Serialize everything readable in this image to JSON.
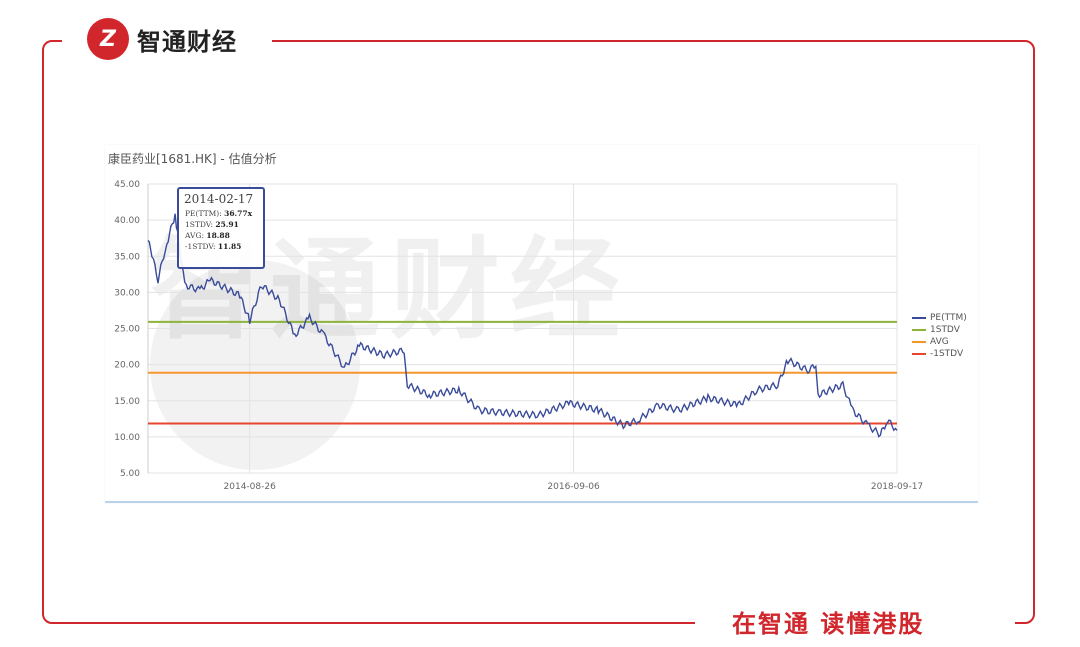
{
  "brand": {
    "logo_text": "智通财经",
    "logo_mark": "Z",
    "slogan": "在智通 读懂港股",
    "accent": "#d0262c"
  },
  "chart_data": {
    "type": "line",
    "title": "康臣药业[1681.HK] - 估值分析",
    "ylim": [
      5,
      45
    ],
    "yticks": [
      "45.00",
      "40.00",
      "35.00",
      "30.00",
      "25.00",
      "20.00",
      "15.00",
      "10.00",
      "5.00"
    ],
    "xlim": [
      "2014-01-05",
      "2018-09-17"
    ],
    "xticks": [
      "2014-08-26",
      "2016-09-06",
      "2018-09-17"
    ],
    "grid": true,
    "legend_position": "right",
    "series": [
      {
        "name": "PE(TTM)",
        "color": "#3a4b9a",
        "points": [
          [
            "2014-01-05",
            37.2
          ],
          [
            "2014-01-14",
            35.2
          ],
          [
            "2014-01-28",
            31.7
          ],
          [
            "2014-02-13",
            35.9
          ],
          [
            "2014-02-17",
            36.77
          ],
          [
            "2014-03-08",
            40.7
          ],
          [
            "2014-03-14",
            38
          ],
          [
            "2014-03-30",
            31
          ],
          [
            "2014-05-04",
            30.3
          ],
          [
            "2014-05-27",
            31.7
          ],
          [
            "2014-08-03",
            29.6
          ],
          [
            "2014-08-26",
            26.1
          ],
          [
            "2014-09-22",
            31
          ],
          [
            "2014-11-02",
            29
          ],
          [
            "2014-12-07",
            24
          ],
          [
            "2015-01-10",
            26.5
          ],
          [
            "2015-02-13",
            24
          ],
          [
            "2015-03-31",
            19.5
          ],
          [
            "2015-05-04",
            22.7
          ],
          [
            "2015-06-30",
            21.3
          ],
          [
            "2015-08-15",
            22
          ],
          [
            "2015-08-22",
            17.2
          ],
          [
            "2015-10-11",
            15.8
          ],
          [
            "2015-12-18",
            16.5
          ],
          [
            "2016-02-02",
            13.7
          ],
          [
            "2016-03-19",
            13.4
          ],
          [
            "2016-06-18",
            13
          ],
          [
            "2016-08-26",
            14.7
          ],
          [
            "2016-11-02",
            13.7
          ],
          [
            "2016-12-29",
            11.6
          ],
          [
            "2017-02-01",
            12.3
          ],
          [
            "2017-03-19",
            14.4
          ],
          [
            "2017-05-04",
            13.7
          ],
          [
            "2017-07-11",
            15.4
          ],
          [
            "2017-09-18",
            14.4
          ],
          [
            "2017-11-02",
            16.5
          ],
          [
            "2017-12-18",
            17.2
          ],
          [
            "2018-01-10",
            20.6
          ],
          [
            "2018-02-25",
            19.2
          ],
          [
            "2018-03-15",
            19.9
          ],
          [
            "2018-03-20",
            15.8
          ],
          [
            "2018-05-16",
            17.2
          ],
          [
            "2018-06-07",
            13.7
          ],
          [
            "2018-07-12",
            11.6
          ],
          [
            "2018-08-10",
            10.3
          ],
          [
            "2018-08-26",
            12.3
          ],
          [
            "2018-09-17",
            10.9
          ]
        ]
      },
      {
        "name": "1STDV",
        "color": "#8db33a",
        "value": 25.91
      },
      {
        "name": "AVG",
        "color": "#f7962f",
        "value": 18.88
      },
      {
        "name": "-1STDV",
        "color": "#e8472f",
        "value": 11.85
      }
    ],
    "tooltip": {
      "date": "2014-02-17",
      "rows": [
        {
          "label": "PE(TTM): ",
          "value": "36.77x"
        },
        {
          "label": "1STDV: ",
          "value": "25.91"
        },
        {
          "label": "AVG: ",
          "value": "18.88"
        },
        {
          "label": "-1STDV: ",
          "value": "11.85"
        }
      ]
    }
  }
}
